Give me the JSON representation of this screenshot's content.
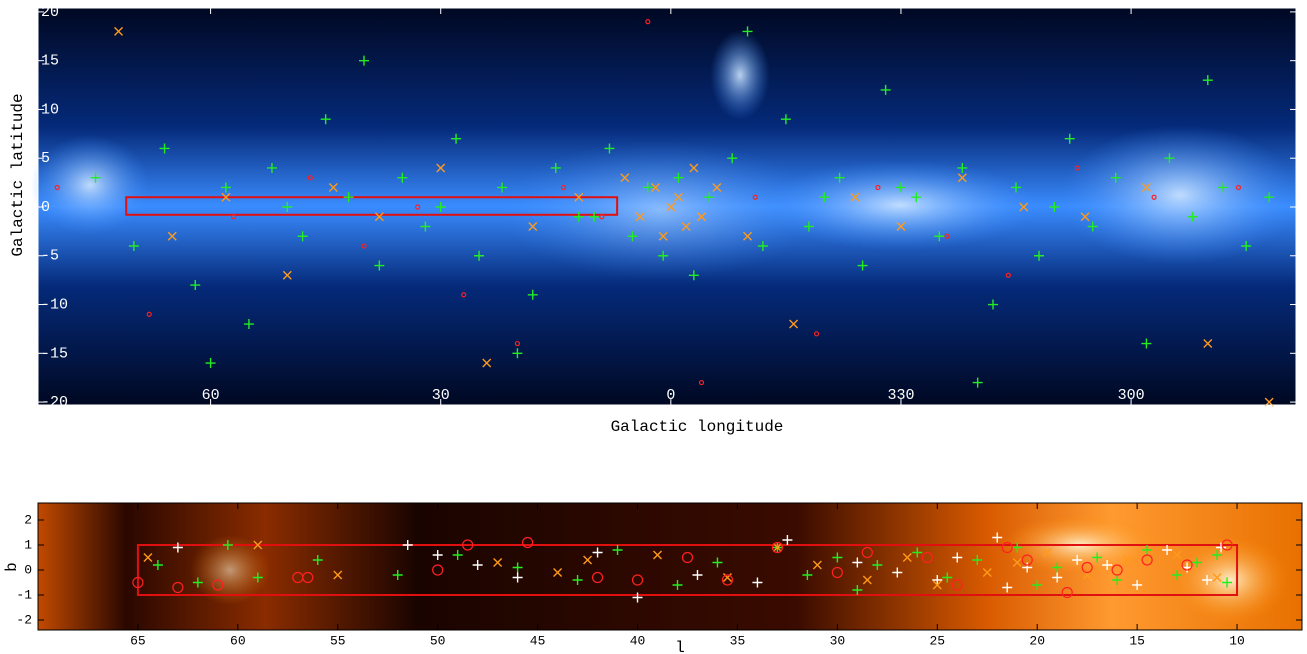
{
  "chart_data": [
    {
      "type": "scatter",
      "xlabel": "Galactic longitude",
      "ylabel": "Galactic latitude",
      "xlim": [
        82.5,
        -81.5
      ],
      "ylim": [
        -20.3,
        20.4
      ],
      "xticks": [
        60,
        30,
        0,
        {
          "value": -30,
          "label": "330"
        },
        {
          "value": -60,
          "label": "300"
        }
      ],
      "yticks": [
        -20,
        -15,
        -10,
        -5,
        0,
        5,
        10,
        15,
        20
      ],
      "box": {
        "xlim": [
          71,
          7
        ],
        "ylim": [
          -0.8,
          1
        ],
        "color": "#e01010"
      },
      "series": [
        {
          "marker": "plus",
          "color": "#22ee22",
          "x": [
            75,
            70,
            66,
            62,
            58,
            55,
            52,
            48,
            45,
            42,
            38,
            35,
            32,
            28,
            25,
            22,
            18,
            15,
            12,
            8,
            5,
            3,
            1,
            -1,
            -3,
            -5,
            -8,
            -12,
            -15,
            -18,
            -22,
            -25,
            -28,
            -32,
            -35,
            -38,
            -42,
            -45,
            -48,
            -52,
            -55,
            -58,
            -62,
            -65,
            -68,
            -72,
            -75,
            -78,
            60,
            40,
            20,
            -10,
            -40,
            -70,
            50,
            10,
            -20,
            -50,
            30,
            -30
          ],
          "values": [
            3,
            -4,
            6,
            -8,
            2,
            -12,
            4,
            -3,
            9,
            1,
            -6,
            3,
            -2,
            7,
            -5,
            2,
            -9,
            4,
            -1,
            6,
            -3,
            2,
            -5,
            3,
            -7,
            1,
            5,
            -4,
            9,
            -2,
            3,
            -6,
            12,
            1,
            -3,
            4,
            -10,
            2,
            -5,
            7,
            -2,
            3,
            -14,
            5,
            -1,
            2,
            -4,
            1,
            -16,
            15,
            -15,
            18,
            -18,
            13,
            0,
            -1,
            1,
            0,
            0,
            2
          ]
        },
        {
          "marker": "x",
          "color": "#ff9a1a",
          "x": [
            72,
            65,
            58,
            50,
            44,
            38,
            30,
            24,
            18,
            12,
            6,
            4,
            2,
            1,
            0,
            -1,
            -2,
            -3,
            -4,
            -6,
            -10,
            -16,
            -24,
            -30,
            -38,
            -46,
            -54,
            -62,
            -70,
            -78
          ],
          "values": [
            18,
            -3,
            1,
            -7,
            2,
            -1,
            4,
            -16,
            -2,
            1,
            3,
            -1,
            2,
            -3,
            0,
            1,
            -2,
            4,
            -1,
            2,
            -3,
            -12,
            1,
            -2,
            3,
            0,
            -1,
            2,
            -14,
            -20
          ]
        },
        {
          "marker": "circle",
          "color": "#ff2020",
          "x": [
            80,
            68,
            57,
            47,
            40,
            33,
            27,
            20,
            14,
            9,
            3,
            -4,
            -11,
            -19,
            -27,
            -36,
            -44,
            -53,
            -63,
            -74
          ],
          "values": [
            2,
            -11,
            -1,
            3,
            -4,
            0,
            -9,
            -14,
            2,
            -1,
            19,
            -18,
            1,
            -13,
            2,
            -3,
            -7,
            4,
            1,
            2
          ]
        }
      ]
    },
    {
      "type": "scatter",
      "xlabel": "l",
      "ylabel": "b",
      "xlim": [
        70,
        6.75
      ],
      "ylim": [
        -2.4,
        2.68
      ],
      "xticks": [
        65,
        60,
        55,
        50,
        45,
        40,
        35,
        30,
        25,
        20,
        15,
        10
      ],
      "yticks": [
        -2,
        -1,
        0,
        1,
        2
      ],
      "box": {
        "xlim": [
          65,
          10
        ],
        "ylim": [
          -1,
          1
        ],
        "color": "#e01010"
      },
      "series": [
        {
          "marker": "plus",
          "color": "#22ee22",
          "x": [
            64,
            62,
            60.5,
            59,
            56,
            52,
            49,
            46,
            43,
            41,
            38,
            36,
            33,
            31.5,
            30,
            29,
            28,
            26,
            24.5,
            23,
            21,
            20,
            19,
            17,
            16,
            14.5,
            13,
            12,
            11,
            10.5
          ],
          "values": [
            0.2,
            -0.5,
            1,
            -0.3,
            0.4,
            -0.2,
            0.6,
            0.1,
            -0.4,
            0.8,
            -0.6,
            0.3,
            0.9,
            -0.2,
            0.5,
            -0.8,
            0.2,
            0.7,
            -0.3,
            0.4,
            0.9,
            -0.6,
            0.1,
            0.5,
            -0.4,
            0.8,
            -0.2,
            0.3,
            0.6,
            -0.5
          ]
        },
        {
          "marker": "plus",
          "color": "#ffffff",
          "x": [
            63,
            51.5,
            50,
            48,
            46,
            42,
            40,
            37,
            34,
            32.5,
            29,
            27,
            25,
            24,
            22,
            21.5,
            20.5,
            19,
            18,
            16.5,
            15,
            13.5,
            12.5,
            11.5,
            10.8
          ],
          "values": [
            0.9,
            1,
            0.6,
            0.2,
            -0.3,
            0.7,
            -1.1,
            -0.2,
            -0.5,
            1.2,
            0.3,
            -0.1,
            -0.4,
            0.5,
            1.3,
            -0.7,
            0.1,
            -0.3,
            0.4,
            0.2,
            -0.6,
            0.8,
            0.1,
            -0.4,
            0.9
          ]
        },
        {
          "marker": "x",
          "color": "#ff9a1a",
          "x": [
            64.5,
            59,
            55,
            47,
            44,
            42.5,
            39,
            35.5,
            33,
            31,
            28.5,
            26.5,
            25,
            22.5,
            21,
            19.5,
            17.5,
            15.5,
            13,
            11
          ],
          "values": [
            0.5,
            1,
            -0.2,
            0.3,
            -0.1,
            0.4,
            0.6,
            -0.3,
            0.9,
            0.2,
            -0.4,
            0.5,
            -0.6,
            -0.1,
            0.3,
            0.7,
            -0.2,
            0.4,
            0.6,
            -0.3
          ]
        },
        {
          "marker": "circle",
          "color": "#ff2020",
          "x": [
            65,
            63,
            61,
            57,
            56.5,
            50,
            48.5,
            45.5,
            42,
            40,
            37.5,
            35.5,
            33,
            30,
            28.5,
            25.5,
            24,
            21.5,
            20.5,
            18.5,
            17.5,
            16,
            14.5,
            12.5,
            10.5
          ],
          "values": [
            -0.5,
            -0.7,
            -0.6,
            -0.3,
            -0.3,
            0,
            1,
            1.1,
            -0.3,
            -0.4,
            0.5,
            -0.4,
            0.9,
            -0.1,
            0.7,
            0.5,
            -0.6,
            0.9,
            0.4,
            -0.9,
            0.1,
            0,
            0.4,
            0.2,
            1
          ]
        }
      ]
    }
  ]
}
